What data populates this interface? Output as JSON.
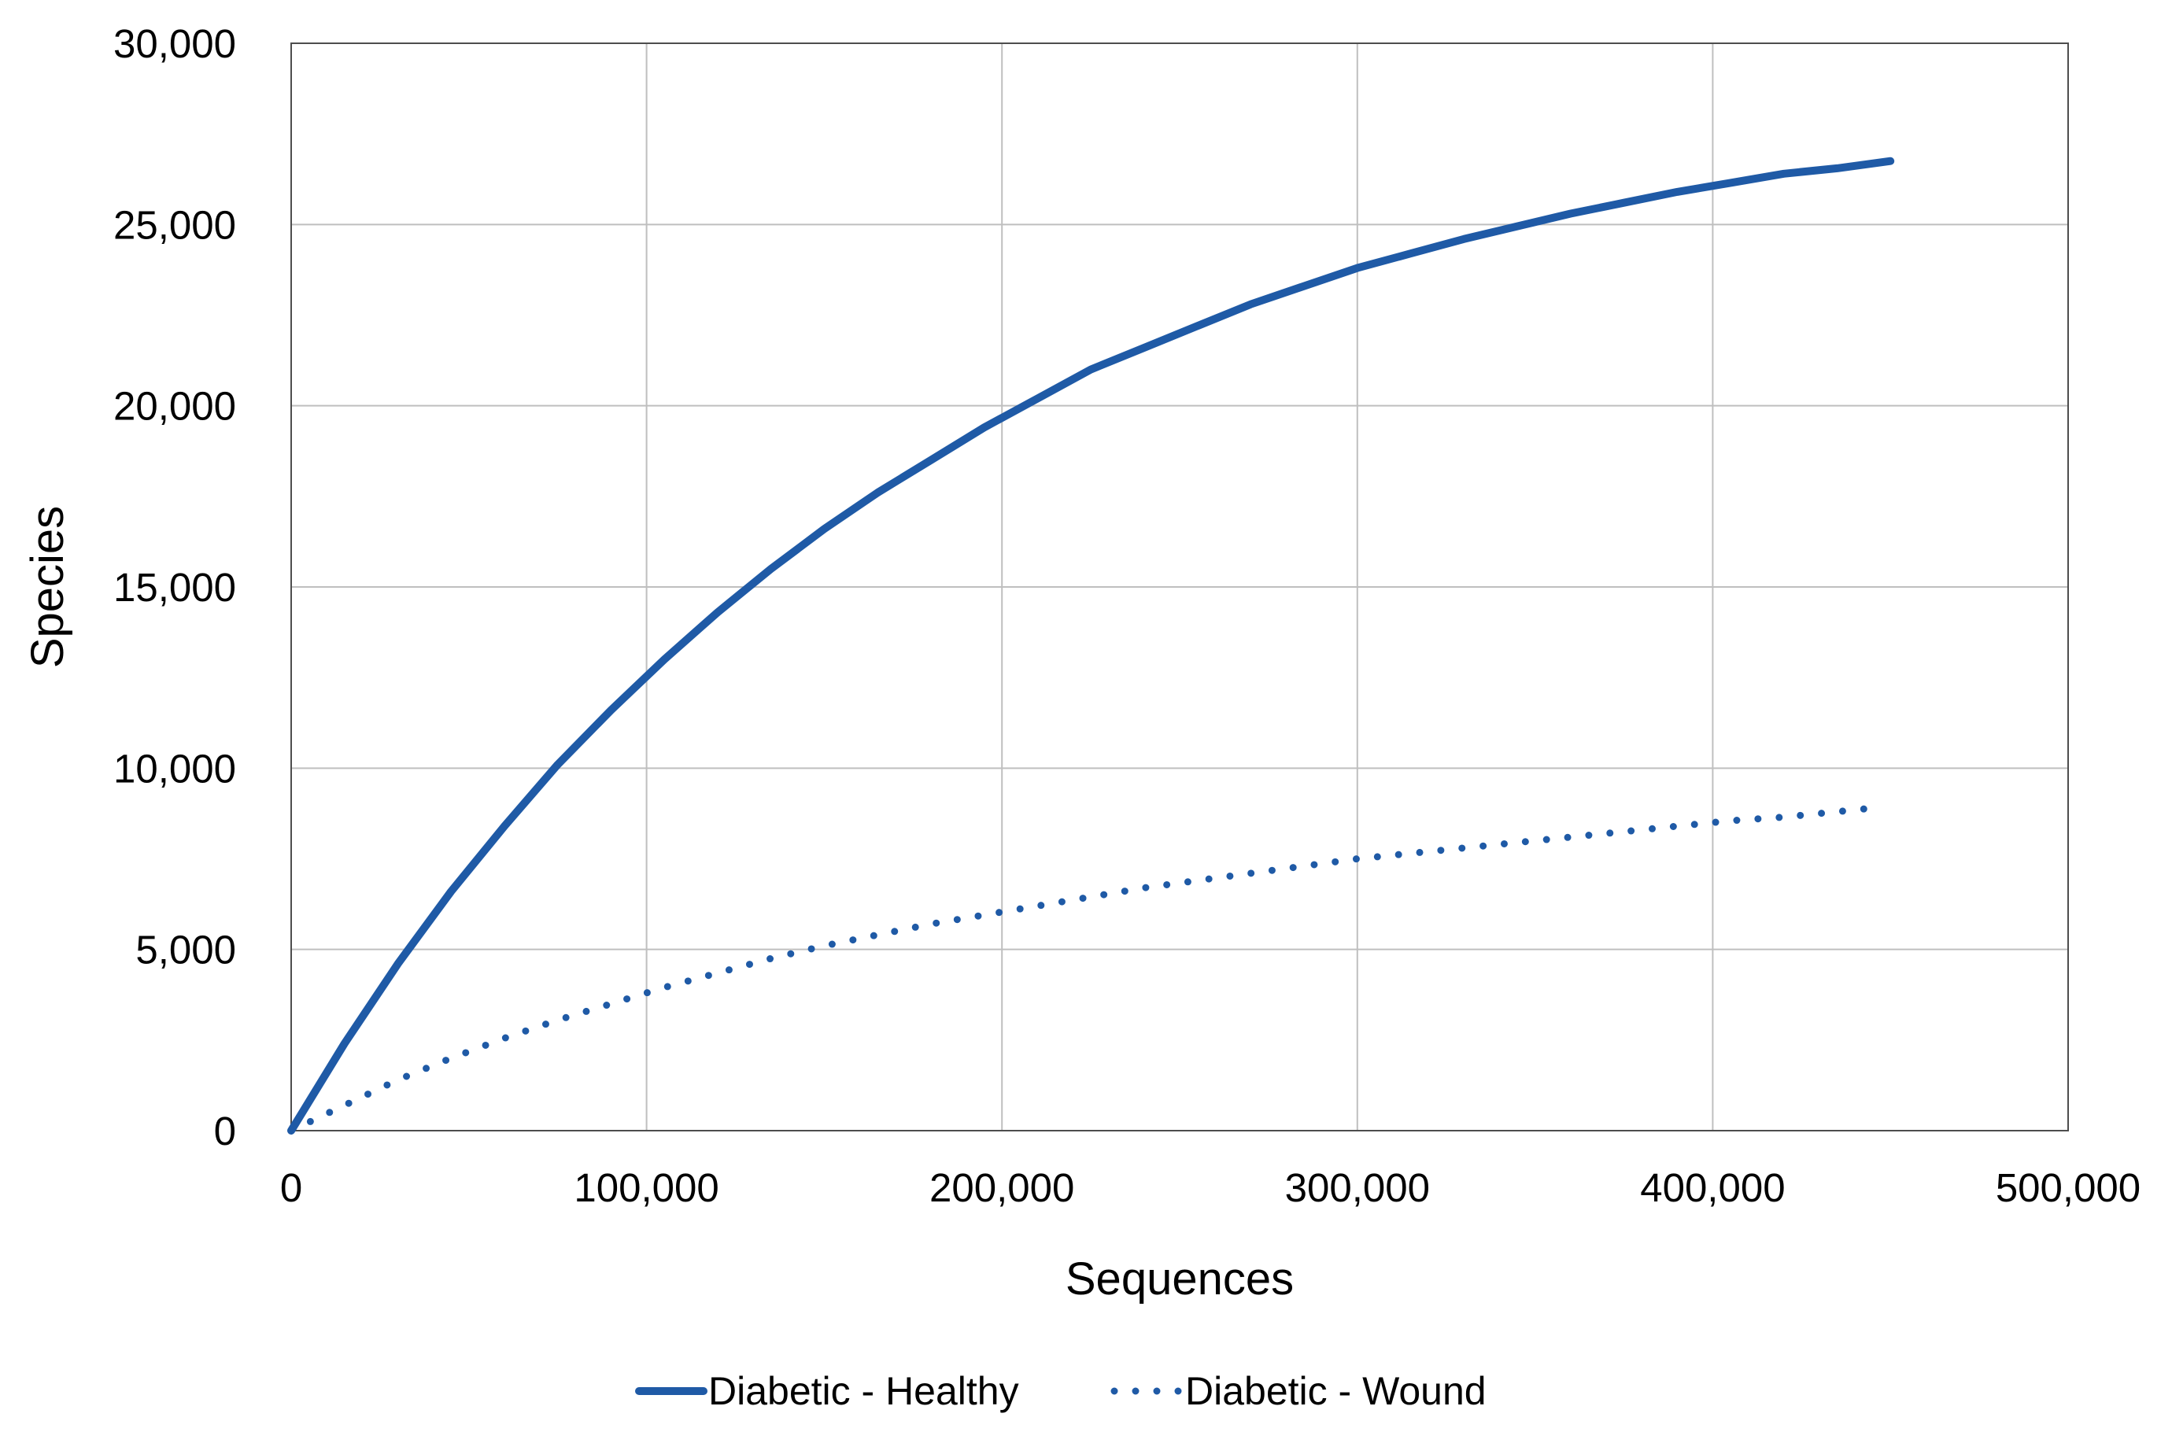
{
  "chart_data": {
    "type": "line",
    "xlabel": "Sequences",
    "ylabel": "Species",
    "xlim": [
      0,
      500000
    ],
    "ylim": [
      0,
      30000
    ],
    "x_ticks": [
      0,
      100000,
      200000,
      300000,
      400000,
      500000
    ],
    "y_ticks": [
      0,
      5000,
      10000,
      15000,
      20000,
      25000,
      30000
    ],
    "x_tick_labels": [
      "0",
      "100,000",
      "200,000",
      "300,000",
      "400,000",
      "500,000"
    ],
    "y_tick_labels": [
      "0",
      "5,000",
      "10,000",
      "15,000",
      "20,000",
      "25,000",
      "30,000"
    ],
    "grid": true,
    "legend_position": "bottom",
    "series": [
      {
        "name": "Diabetic - Healthy",
        "style": "solid",
        "color": "#1F5AA6",
        "x": [
          0,
          15000,
          30000,
          45000,
          60000,
          75000,
          90000,
          105000,
          120000,
          135000,
          150000,
          165000,
          180000,
          195000,
          210000,
          225000,
          240000,
          255000,
          270000,
          285000,
          300000,
          315000,
          330000,
          345000,
          360000,
          375000,
          390000,
          405000,
          420000,
          435000,
          450000
        ],
        "y": [
          0,
          2400,
          4600,
          6600,
          8400,
          10100,
          11600,
          13000,
          14300,
          15500,
          16600,
          17600,
          18500,
          19400,
          20200,
          21000,
          21600,
          22200,
          22800,
          23300,
          23800,
          24200,
          24600,
          24950,
          25300,
          25600,
          25900,
          26150,
          26400,
          26550,
          26750
        ]
      },
      {
        "name": "Diabetic - Wound",
        "style": "dotted",
        "color": "#1F5AA6",
        "x": [
          0,
          15000,
          30000,
          45000,
          60000,
          75000,
          90000,
          105000,
          120000,
          135000,
          150000,
          165000,
          180000,
          195000,
          210000,
          225000,
          240000,
          255000,
          270000,
          285000,
          300000,
          315000,
          330000,
          345000,
          360000,
          375000,
          390000,
          405000,
          420000,
          435000,
          445000
        ],
        "y": [
          0,
          700,
          1400,
          2000,
          2550,
          3050,
          3500,
          3950,
          4350,
          4750,
          5100,
          5400,
          5700,
          5950,
          6200,
          6450,
          6700,
          6900,
          7100,
          7300,
          7500,
          7650,
          7800,
          7950,
          8100,
          8250,
          8400,
          8550,
          8650,
          8800,
          8900
        ]
      }
    ]
  }
}
